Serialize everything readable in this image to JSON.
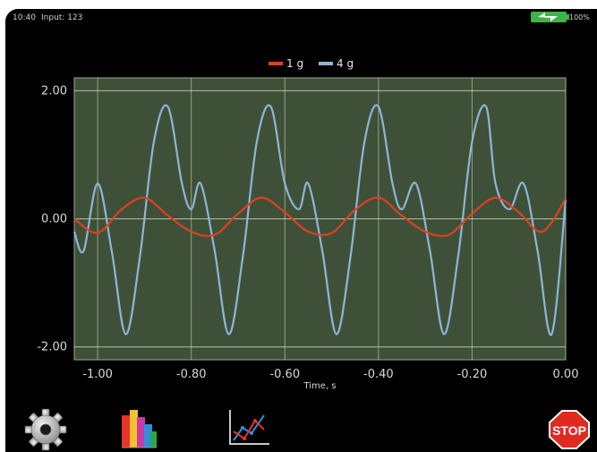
{
  "status": {
    "time": "10:40",
    "input": "Input: 123",
    "battery": "100%"
  },
  "chart_data": {
    "type": "line",
    "title": "",
    "xlabel": "Time, s",
    "ylabel": "",
    "xlim": [
      -1.05,
      0.0
    ],
    "ylim": [
      -2.2,
      2.2
    ],
    "xticks": [
      "-1.00",
      "-0.80",
      "-0.60",
      "-0.40",
      "-0.20",
      "0.00"
    ],
    "yticks": [
      "2.00",
      "0.00",
      "-2.00"
    ],
    "grid": true,
    "legend": "top-center",
    "series": [
      {
        "name": "1 g",
        "color": "#e04020",
        "x": [
          -1.05,
          -1.0,
          -0.95,
          -0.9,
          -0.85,
          -0.8,
          -0.75,
          -0.7,
          -0.65,
          -0.6,
          -0.55,
          -0.5,
          -0.45,
          -0.4,
          -0.35,
          -0.3,
          -0.25,
          -0.2,
          -0.15,
          -0.1,
          -0.05,
          0.0
        ],
        "y": [
          0.0,
          -0.22,
          0.14,
          0.33,
          0.05,
          -0.2,
          -0.25,
          0.08,
          0.33,
          0.1,
          -0.2,
          -0.22,
          0.14,
          0.33,
          0.05,
          -0.2,
          -0.25,
          0.08,
          0.33,
          0.1,
          -0.2,
          0.31
        ]
      },
      {
        "name": "4 g",
        "color": "#8fb4d8",
        "x": [
          -1.05,
          -1.03,
          -1.0,
          -0.97,
          -0.94,
          -0.91,
          -0.88,
          -0.85,
          -0.82,
          -0.8,
          -0.78,
          -0.75,
          -0.72,
          -0.69,
          -0.66,
          -0.63,
          -0.6,
          -0.57,
          -0.55,
          -0.52,
          -0.49,
          -0.46,
          -0.43,
          -0.4,
          -0.37,
          -0.35,
          -0.32,
          -0.29,
          -0.26,
          -0.23,
          -0.2,
          -0.17,
          -0.15,
          -0.12,
          -0.09,
          -0.06,
          -0.03,
          0.0
        ],
        "y": [
          -0.2,
          -0.5,
          0.55,
          -0.5,
          -1.8,
          -0.6,
          1.2,
          1.75,
          0.55,
          0.15,
          0.55,
          -0.5,
          -1.8,
          -0.6,
          1.2,
          1.75,
          0.55,
          0.15,
          0.55,
          -0.5,
          -1.8,
          -0.6,
          1.2,
          1.75,
          0.55,
          0.15,
          0.55,
          -0.5,
          -1.8,
          -0.6,
          1.2,
          1.75,
          0.55,
          0.15,
          0.55,
          -0.5,
          -1.8,
          0.3
        ]
      }
    ]
  },
  "toolbar": {
    "settings_icon": "gear-icon",
    "reports_icon": "books-chart-icon",
    "graph_icon": "line-graph-icon",
    "stop_label": "STOP",
    "stop_color": "#e02a20"
  }
}
